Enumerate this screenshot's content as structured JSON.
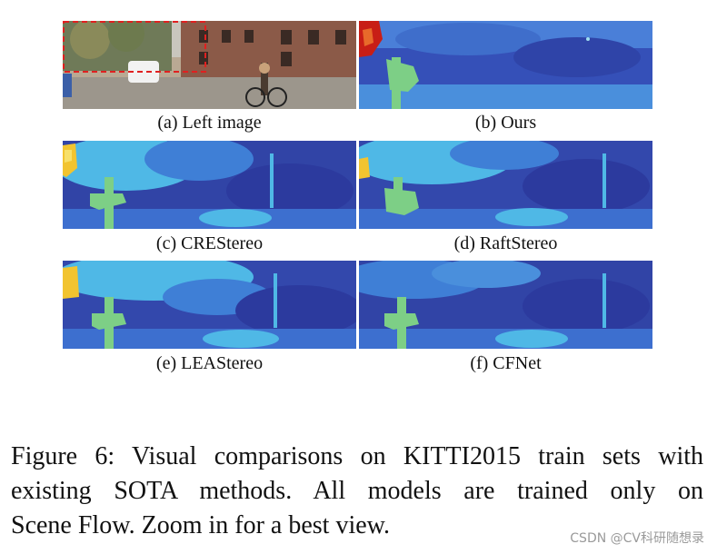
{
  "figure": {
    "panels": [
      {
        "caption": "(a) Left image"
      },
      {
        "caption": "(b) Ours"
      },
      {
        "caption": "(c) CREStereo"
      },
      {
        "caption": "(d) RaftStereo"
      },
      {
        "caption": "(e) LEAStereo"
      },
      {
        "caption": "(f) CFNet"
      }
    ],
    "caption_lines": [
      "Figure 6: Visual comparisons on KITTI2015 train sets with",
      "existing SOTA methods.  All models are trained only on",
      "Scene Flow. Zoom in for a best view."
    ]
  },
  "watermark": "CSDN @CV科研随想录",
  "colors": {
    "disparity_dark": "#2c3a9e",
    "disparity_mid": "#3f72cf",
    "disparity_light": "#4fb8e6",
    "sign_green": "#7dcf86",
    "near_yellow": "#f2c430",
    "near_red": "#c81e16",
    "highlight_box": "#e02020"
  }
}
